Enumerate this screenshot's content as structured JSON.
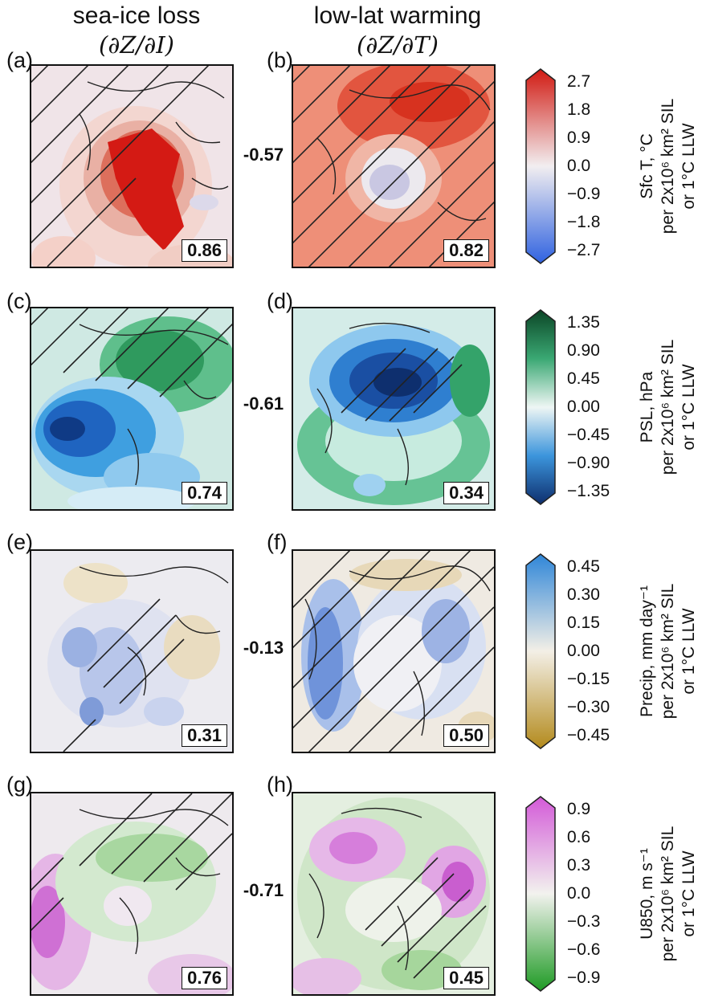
{
  "columns": [
    {
      "title": "sea-ice loss",
      "sub": "(∂Z/∂I)"
    },
    {
      "title": "low-lat warming",
      "sub": "(∂Z/∂T)"
    }
  ],
  "rows": [
    {
      "panels": [
        {
          "label": "(a)",
          "score": "0.86"
        },
        {
          "label": "(b)",
          "score": "0.82"
        }
      ],
      "correlation": "-0.57",
      "colorbar": {
        "variable": "Sfc T, °C",
        "line2": "per 2x10⁶ km² SIL",
        "line3": "or 1°C LLW",
        "ticks": [
          "2.7",
          "1.8",
          "0.9",
          "0.0",
          "−0.9",
          "−1.8",
          "−2.7"
        ],
        "colors": {
          "max": "#d11a12",
          "mid": "#f2eef0",
          "min": "#2f62e0"
        }
      }
    },
    {
      "panels": [
        {
          "label": "(c)",
          "score": "0.74"
        },
        {
          "label": "(d)",
          "score": "0.34"
        }
      ],
      "correlation": "-0.61",
      "colorbar": {
        "variable": "PSL, hPa",
        "line2": "per 2x10⁶ km² SIL",
        "line3": "or 1°C LLW",
        "ticks": [
          "1.35",
          "0.90",
          "0.45",
          "0.00",
          "−0.45",
          "−0.90",
          "−1.35"
        ],
        "colors": {
          "max": "#0b4526",
          "mid": "#eef6f4",
          "min": "#0e2f6e"
        }
      }
    },
    {
      "panels": [
        {
          "label": "(e)",
          "score": "0.31"
        },
        {
          "label": "(f)",
          "score": "0.50"
        }
      ],
      "correlation": "-0.13",
      "colorbar": {
        "variable": "Precip, mm day⁻¹",
        "line2": "per 2x10⁶ km² SIL",
        "line3": "or 1°C LLW",
        "ticks": [
          "0.45",
          "0.30",
          "0.15",
          "0.00",
          "−0.15",
          "−0.30",
          "−0.45"
        ],
        "colors": {
          "max": "#2f86d8",
          "mid": "#f3efe6",
          "min": "#b38a1c"
        }
      }
    },
    {
      "panels": [
        {
          "label": "(g)",
          "score": "0.76"
        },
        {
          "label": "(h)",
          "score": "0.45"
        }
      ],
      "correlation": "-0.71",
      "colorbar": {
        "variable": "U850, m s⁻¹",
        "line2": "per 2x10⁶ km² SIL",
        "line3": "or 1°C LLW",
        "ticks": [
          "0.9",
          "0.6",
          "0.3",
          "0.0",
          "−0.3",
          "−0.6",
          "−0.9"
        ],
        "colors": {
          "max": "#d35ad8",
          "mid": "#f2f2ee",
          "min": "#1e9a24"
        }
      }
    }
  ]
}
